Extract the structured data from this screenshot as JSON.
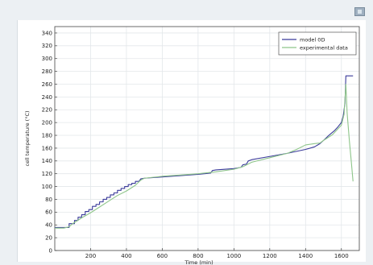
{
  "chart_data": {
    "type": "line",
    "xlabel": "Time (min)",
    "ylabel": "cell temperature (°C)",
    "xlim": [
      0,
      1700
    ],
    "ylim": [
      0,
      350
    ],
    "xticks": [
      200,
      400,
      600,
      800,
      1000,
      1200,
      1400,
      1600
    ],
    "yticks": [
      0,
      20,
      40,
      60,
      80,
      100,
      120,
      140,
      160,
      180,
      200,
      220,
      240,
      260,
      280,
      300,
      320,
      340
    ],
    "grid": true,
    "legend_position": "top-right",
    "series": [
      {
        "name": "model 0D",
        "color": "#3a3a9a",
        "x": [
          0,
          80,
          80,
          110,
          110,
          130,
          130,
          150,
          150,
          170,
          170,
          190,
          190,
          210,
          210,
          230,
          230,
          250,
          250,
          270,
          270,
          290,
          290,
          310,
          310,
          330,
          330,
          350,
          350,
          370,
          370,
          390,
          390,
          410,
          410,
          430,
          430,
          450,
          450,
          470,
          480,
          500,
          600,
          700,
          800,
          870,
          880,
          900,
          1000,
          1040,
          1050,
          1070,
          1080,
          1100,
          1200,
          1300,
          1350,
          1400,
          1450,
          1480,
          1500,
          1530,
          1560,
          1580,
          1600,
          1610,
          1620,
          1625,
          1660,
          1665
        ],
        "y": [
          36,
          36,
          42,
          42,
          47,
          47,
          52,
          52,
          56,
          56,
          61,
          61,
          64,
          64,
          69,
          69,
          72,
          72,
          76,
          76,
          80,
          80,
          83,
          83,
          87,
          87,
          90,
          90,
          94,
          94,
          97,
          97,
          100,
          100,
          103,
          103,
          105,
          105,
          108,
          108,
          112,
          113,
          115,
          117,
          119,
          121,
          125,
          126,
          128,
          130,
          134,
          135,
          140,
          142,
          147,
          152,
          155,
          158,
          162,
          167,
          172,
          180,
          187,
          193,
          200,
          210,
          230,
          273,
          273,
          273
        ]
      },
      {
        "name": "experimental data",
        "color": "#8ec58a",
        "x": [
          0,
          50,
          80,
          100,
          150,
          200,
          250,
          300,
          350,
          400,
          450,
          480,
          500,
          600,
          700,
          800,
          900,
          1000,
          1050,
          1100,
          1200,
          1300,
          1350,
          1400,
          1450,
          1480,
          1500,
          1550,
          1580,
          1600,
          1615,
          1625,
          1632,
          1645,
          1655,
          1665
        ],
        "y": [
          35,
          35,
          37,
          42,
          51,
          59,
          68,
          77,
          86,
          93,
          102,
          110,
          113,
          116,
          118,
          120,
          123,
          127,
          131,
          138,
          145,
          152,
          158,
          165,
          167,
          168,
          172,
          181,
          190,
          196,
          213,
          260,
          215,
          170,
          140,
          108
        ]
      }
    ]
  }
}
